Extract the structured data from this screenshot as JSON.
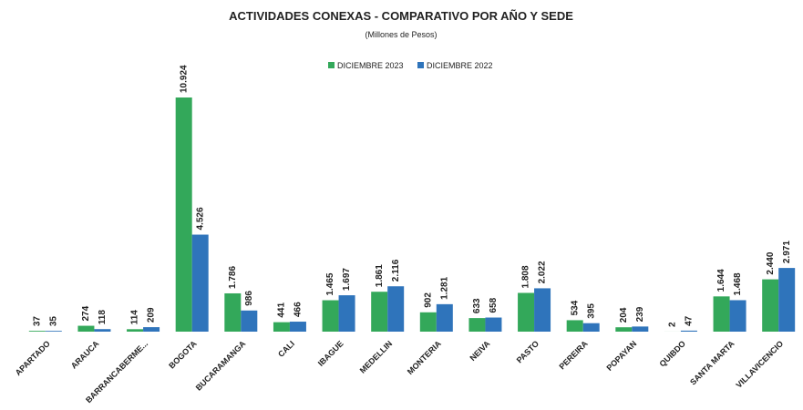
{
  "chart_data": {
    "type": "bar",
    "title": "ACTIVIDADES CONEXAS - COMPARATIVO POR AÑO Y SEDE",
    "subtitle": "(Millones de Pesos)",
    "categories": [
      "APARTADO",
      "ARAUCA",
      "BARRANCABERME...",
      "BOGOTA",
      "BUCARAMANGA",
      "CALI",
      "IBAGUE",
      "MEDELLIN",
      "MONTERIA",
      "NEIVA",
      "PASTO",
      "PEREIRA",
      "POPAYAN",
      "QUIBDO",
      "SANTA MARTA",
      "VILLAVICENCIO"
    ],
    "series": [
      {
        "name": "DICIEMBRE 2023",
        "color": "#33a85a",
        "values": [
          37,
          274,
          114,
          10924,
          1786,
          441,
          1465,
          1861,
          902,
          633,
          1808,
          534,
          204,
          2,
          1644,
          2440
        ],
        "value_labels": [
          "37",
          "274",
          "114",
          "10.924",
          "1.786",
          "441",
          "1.465",
          "1.861",
          "902",
          "633",
          "1.808",
          "534",
          "204",
          "2",
          "1.644",
          "2.440"
        ]
      },
      {
        "name": "DICIEMBRE 2022",
        "color": "#2f74bb",
        "values": [
          35,
          118,
          209,
          4526,
          986,
          466,
          1697,
          2116,
          1281,
          658,
          2022,
          395,
          239,
          47,
          1468,
          2971
        ],
        "value_labels": [
          "35",
          "118",
          "209",
          "4.526",
          "986",
          "466",
          "1.697",
          "2.116",
          "1.281",
          "658",
          "2.022",
          "395",
          "239",
          "47",
          "1.468",
          "2.971"
        ]
      }
    ],
    "legend": "top"
  }
}
